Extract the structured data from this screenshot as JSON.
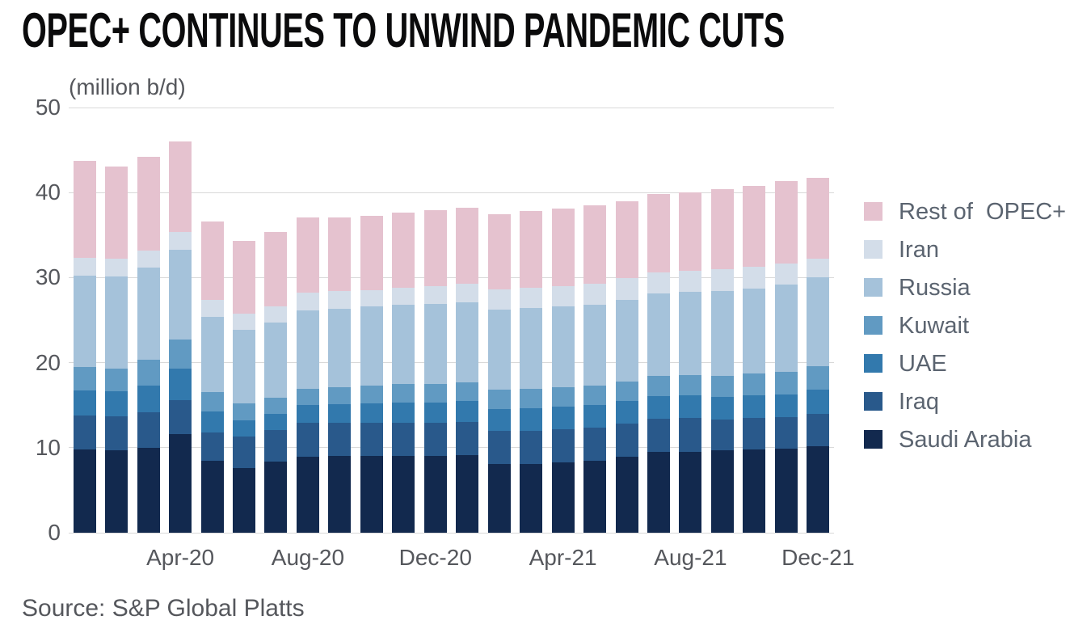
{
  "page": {
    "background": "#ffffff",
    "title_color": "#0b0b0c",
    "axis_text_color": "#55575c",
    "legend_text_color": "#5b6470"
  },
  "chart_data": {
    "type": "bar",
    "stacked": true,
    "title": "OPEC+ CONTINUES TO UNWIND PANDEMIC CUTS",
    "unit_label": "(million b/d)",
    "source": "Source: S&P Global Platts",
    "grid": "horizontal",
    "grid_color": "#d9d9d9",
    "ylim": [
      0,
      50
    ],
    "yticks": [
      0,
      10,
      20,
      30,
      40,
      50
    ],
    "legend_position": "right",
    "legend_order_top_to_bottom": [
      "Rest of OPEC+",
      "Iran",
      "Russia",
      "Kuwait",
      "UAE",
      "Iraq",
      "Saudi Arabia"
    ],
    "categories": [
      "Jan-20",
      "Feb-20",
      "Mar-20",
      "Apr-20",
      "May-20",
      "Jun-20",
      "Jul-20",
      "Aug-20",
      "Sep-20",
      "Oct-20",
      "Nov-20",
      "Dec-20",
      "Jan-21",
      "Feb-21",
      "Mar-21",
      "Apr-21",
      "May-21",
      "Jun-21",
      "Jul-21",
      "Aug-21",
      "Sep-21",
      "Oct-21",
      "Nov-21",
      "Dec-21"
    ],
    "x_ticks": {
      "indices": [
        3,
        7,
        11,
        15,
        19,
        23
      ],
      "labels": [
        "Apr-20",
        "Aug-20",
        "Dec-20",
        "Apr-21",
        "Aug-21",
        "Dec-21"
      ]
    },
    "series": [
      {
        "name": "Saudi Arabia",
        "color": "#12294e",
        "values": [
          9.8,
          9.7,
          10.0,
          11.6,
          8.5,
          7.6,
          8.4,
          8.9,
          9.0,
          9.0,
          9.0,
          9.0,
          9.1,
          8.1,
          8.1,
          8.3,
          8.5,
          8.9,
          9.5,
          9.5,
          9.7,
          9.8,
          9.9,
          10.2
        ]
      },
      {
        "name": "Iraq",
        "color": "#29598b",
        "values": [
          4.0,
          4.0,
          4.2,
          4.0,
          3.3,
          3.7,
          3.7,
          4.0,
          3.9,
          3.9,
          3.9,
          3.9,
          3.9,
          3.9,
          3.9,
          3.9,
          3.9,
          3.9,
          3.9,
          4.0,
          3.6,
          3.7,
          3.7,
          3.8
        ]
      },
      {
        "name": "UAE",
        "color": "#3279ad",
        "values": [
          2.9,
          2.9,
          3.1,
          3.7,
          2.5,
          1.9,
          1.9,
          2.1,
          2.2,
          2.3,
          2.4,
          2.4,
          2.5,
          2.5,
          2.6,
          2.6,
          2.6,
          2.7,
          2.7,
          2.7,
          2.7,
          2.7,
          2.7,
          2.8
        ]
      },
      {
        "name": "Kuwait",
        "color": "#619ac2",
        "values": [
          2.8,
          2.7,
          3.0,
          3.4,
          2.2,
          2.0,
          1.9,
          1.9,
          2.0,
          2.1,
          2.2,
          2.2,
          2.2,
          2.3,
          2.3,
          2.3,
          2.3,
          2.3,
          2.3,
          2.3,
          2.4,
          2.5,
          2.6,
          2.8
        ]
      },
      {
        "name": "Russia",
        "color": "#a5c2da",
        "values": [
          10.7,
          10.8,
          10.9,
          10.6,
          8.9,
          8.7,
          8.8,
          9.2,
          9.2,
          9.3,
          9.3,
          9.4,
          9.4,
          9.4,
          9.5,
          9.5,
          9.5,
          9.6,
          9.7,
          9.8,
          10.0,
          10.0,
          10.3,
          10.4
        ]
      },
      {
        "name": "Iran",
        "color": "#d3dde9",
        "values": [
          2.1,
          2.1,
          2.0,
          2.1,
          2.0,
          1.9,
          1.9,
          2.1,
          2.1,
          1.9,
          2.0,
          2.1,
          2.2,
          2.4,
          2.4,
          2.4,
          2.5,
          2.5,
          2.5,
          2.5,
          2.6,
          2.6,
          2.5,
          2.2
        ]
      },
      {
        "name": "Rest of OPEC+",
        "legend_label": "Rest of  OPEC+",
        "color": "#e5c2cf",
        "values": [
          11.4,
          10.9,
          11.0,
          10.6,
          9.2,
          8.5,
          8.8,
          8.9,
          8.7,
          8.8,
          8.8,
          8.9,
          8.9,
          8.9,
          9.0,
          9.1,
          9.2,
          9.1,
          9.2,
          9.2,
          9.4,
          9.5,
          9.7,
          9.5
        ]
      }
    ]
  }
}
